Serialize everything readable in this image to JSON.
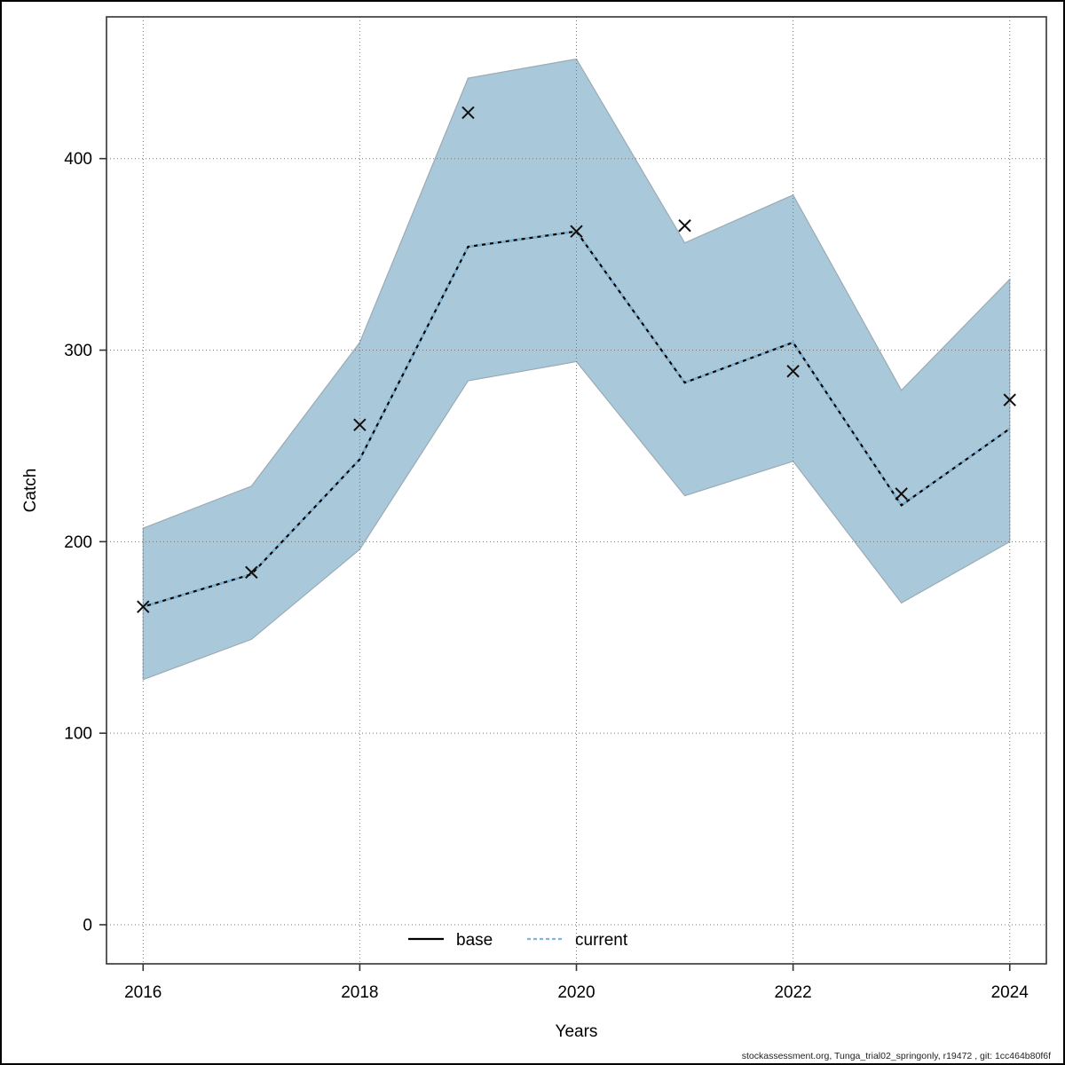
{
  "footer": "stockassessment.org, Tunga_trial02_springonly, r19472 , git: 1cc464b80f6f",
  "chart_data": {
    "type": "line",
    "title": "",
    "xlabel": "Years",
    "ylabel": "Catch",
    "x": [
      2016,
      2017,
      2018,
      2019,
      2020,
      2021,
      2022,
      2023,
      2024
    ],
    "series": [
      {
        "name": "base",
        "style": "solid",
        "color": "#000000",
        "values": [
          166,
          183,
          243,
          354,
          362,
          283,
          304,
          219,
          259
        ]
      },
      {
        "name": "current",
        "style": "dotted",
        "color": "#7fb5d8",
        "values": [
          166,
          183,
          243,
          354,
          362,
          283,
          304,
          219,
          259
        ]
      }
    ],
    "observations": {
      "marker": "x",
      "color": "#111111",
      "values": [
        166,
        184,
        261,
        424,
        362,
        365,
        289,
        225,
        274
      ]
    },
    "band": {
      "upper": [
        207,
        229,
        304,
        442,
        452,
        356,
        381,
        279,
        337
      ],
      "lower": [
        128,
        149,
        196,
        284,
        294,
        224,
        242,
        168,
        200
      ],
      "fill": "#a9c8da",
      "edge": "#9aabb5"
    },
    "xticks": [
      2016,
      2018,
      2020,
      2022,
      2024
    ],
    "yticks": [
      0,
      100,
      200,
      300,
      400
    ],
    "xlim": [
      2015.662,
      2024.338
    ],
    "ylim": [
      -20.4,
      474
    ],
    "grid": true,
    "grid_color": "#777777",
    "frame_color": "#333333",
    "legend": [
      "base",
      "current"
    ],
    "legend_position": "bottom-center"
  }
}
